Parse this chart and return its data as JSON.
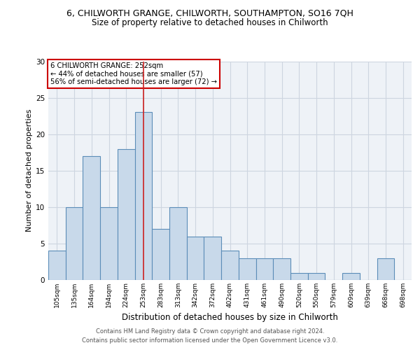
{
  "title_line1": "6, CHILWORTH GRANGE, CHILWORTH, SOUTHAMPTON, SO16 7QH",
  "title_line2": "Size of property relative to detached houses in Chilworth",
  "xlabel": "Distribution of detached houses by size in Chilworth",
  "ylabel": "Number of detached properties",
  "categories": [
    "105sqm",
    "135sqm",
    "164sqm",
    "194sqm",
    "224sqm",
    "253sqm",
    "283sqm",
    "313sqm",
    "342sqm",
    "372sqm",
    "402sqm",
    "431sqm",
    "461sqm",
    "490sqm",
    "520sqm",
    "550sqm",
    "579sqm",
    "609sqm",
    "639sqm",
    "668sqm",
    "698sqm"
  ],
  "values": [
    4,
    10,
    17,
    10,
    18,
    23,
    7,
    10,
    6,
    6,
    4,
    3,
    3,
    3,
    1,
    1,
    0,
    1,
    0,
    3,
    0
  ],
  "bar_color": "#c8d9ea",
  "bar_edge_color": "#5b8db8",
  "highlight_index": 5,
  "highlight_line_color": "#cc2222",
  "ylim": [
    0,
    30
  ],
  "yticks": [
    0,
    5,
    10,
    15,
    20,
    25,
    30
  ],
  "annotation_title": "6 CHILWORTH GRANGE: 252sqm",
  "annotation_line2": "← 44% of detached houses are smaller (57)",
  "annotation_line3": "56% of semi-detached houses are larger (72) →",
  "annotation_box_color": "#ffffff",
  "annotation_box_edge": "#cc0000",
  "footer_line1": "Contains HM Land Registry data © Crown copyright and database right 2024.",
  "footer_line2": "Contains public sector information licensed under the Open Government Licence v3.0.",
  "bg_color": "#eef2f7",
  "grid_color": "#cdd5e0"
}
